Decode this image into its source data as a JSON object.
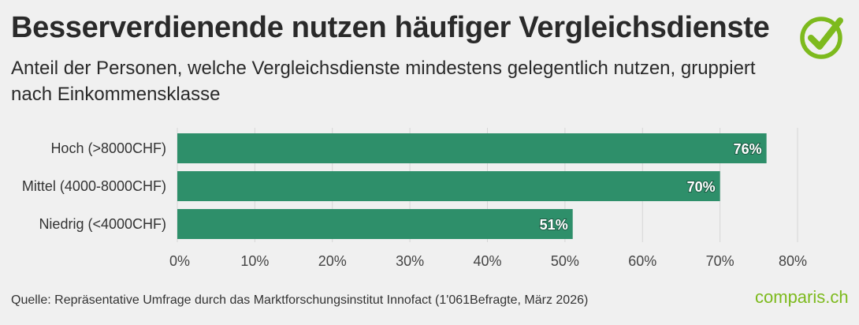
{
  "header": {
    "title": "Besserverdienende nutzen häufiger Vergleichsdienste",
    "subtitle": "Anteil der Personen, welche Vergleichsdienste mindestens gelegentlich nutzen, gruppiert nach Einkommensklasse"
  },
  "footer": {
    "source": "Quelle: Repräsentative Umfrage durch das Marktforschungsinstitut Innofact (1'061Befragte, März 2026)",
    "brand_prefix": "c",
    "brand_middle": "o",
    "brand_suffix": "mparis.ch"
  },
  "icons": {
    "logo": "checkmark-circle-icon"
  },
  "colors": {
    "bar": "#2e8f6a",
    "brand": "#7dba1d",
    "background": "#f0f0f0"
  },
  "chart_data": {
    "type": "bar",
    "orientation": "horizontal",
    "categories": [
      "Hoch (>8000CHF)",
      "Mittel (4000-8000CHF)",
      "Niedrig (<4000CHF)"
    ],
    "values": [
      76,
      70,
      51
    ],
    "value_labels": [
      "76%",
      "70%",
      "51%"
    ],
    "xlim": [
      0,
      80
    ],
    "ticks": [
      0,
      10,
      20,
      30,
      40,
      50,
      60,
      70,
      80
    ],
    "tick_labels": [
      "0%",
      "10%",
      "20%",
      "30%",
      "40%",
      "50%",
      "60%",
      "70%",
      "80%"
    ],
    "grid": true
  }
}
